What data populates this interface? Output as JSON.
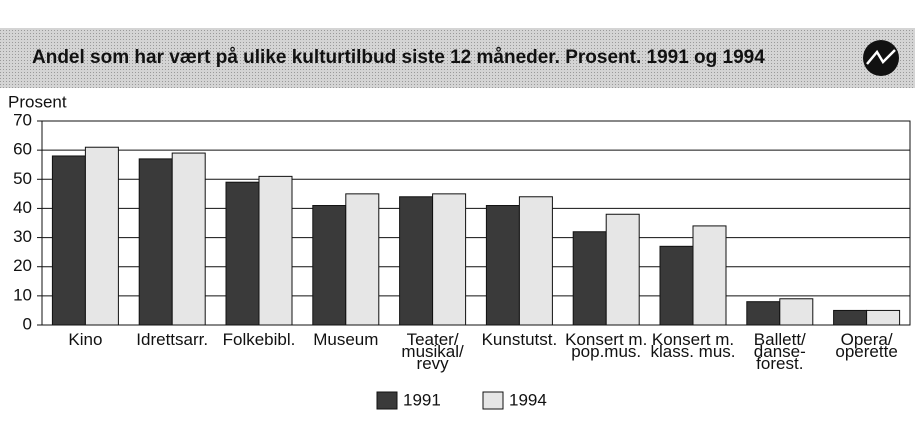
{
  "chart_data": {
    "type": "bar",
    "title": "Andel som har vært på ulike kulturtilbud siste 12 måneder. Prosent. 1991 og 1994",
    "y_label": "Prosent",
    "categories": [
      "Kino",
      "Idrettsarr.",
      "Folkebibl.",
      "Museum",
      "Teater/\nmusikal/\nrevy",
      "Kunstutst.",
      "Konsert m.\npop.mus.",
      "Konsert m.\nklass. mus.",
      "Ballett/\ndanse-\nforest.",
      "Opera/\noperette"
    ],
    "series": [
      {
        "name": "1991",
        "color": "#3a3a3a",
        "values": [
          58,
          57,
          49,
          41,
          44,
          41,
          32,
          27,
          8,
          5
        ]
      },
      {
        "name": "1994",
        "color": "#e6e6e6",
        "values": [
          61,
          59,
          51,
          45,
          45,
          44,
          38,
          34,
          9,
          5
        ]
      }
    ],
    "ylim": [
      0,
      70
    ],
    "yticks": [
      0,
      10,
      20,
      30,
      40,
      50,
      60,
      70
    ],
    "grid": true,
    "legend": "bottom"
  }
}
